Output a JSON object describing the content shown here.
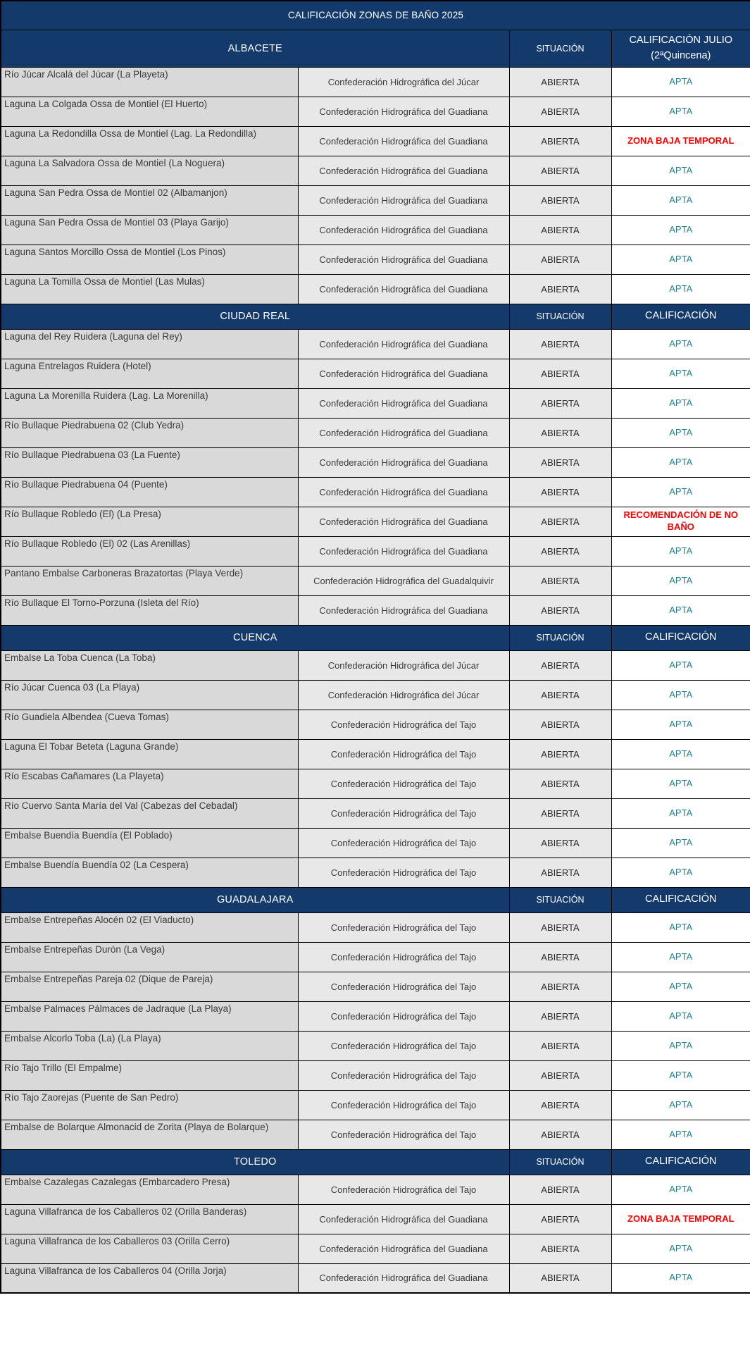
{
  "title": "CALIFICACIÓN ZONAS DE BAÑO 2025",
  "colors": {
    "header_navy": "#143A6B",
    "apta_teal": "#21808D",
    "alert_red": "#FF0000",
    "zone_col_bg": "#D9D9D9",
    "mid_col_bg": "#E8E8E8",
    "border": "#000000"
  },
  "sections": [
    {
      "province": "ALBACETE",
      "situacion_header": "SITUACIÓN",
      "calificacion_header_lines": [
        "CALIFICACIÓN JULIO",
        "(2ªQuincena)"
      ],
      "rows": [
        {
          "zone": "Río Júcar Alcalá del Júcar (La Playeta)",
          "authority": "Confederación Hidrográfica del Júcar",
          "situation": "ABIERTA",
          "rating": "APTA",
          "alert": false
        },
        {
          "zone": "Laguna La Colgada Ossa de Montiel (El Huerto)",
          "authority": "Confederación Hidrográfica del Guadiana",
          "situation": "ABIERTA",
          "rating": "APTA",
          "alert": false
        },
        {
          "zone": "Laguna La Redondilla Ossa de Montiel (Lag. La Redondilla)",
          "authority": "Confederación Hidrográfica del Guadiana",
          "situation": "ABIERTA",
          "rating": "ZONA BAJA TEMPORAL",
          "alert": true
        },
        {
          "zone": "Laguna La Salvadora Ossa de Montiel (La Noguera)",
          "authority": "Confederación Hidrográfica del Guadiana",
          "situation": "ABIERTA",
          "rating": "APTA",
          "alert": false
        },
        {
          "zone": "Laguna San Pedra Ossa de Montiel 02 (Albamanjon)",
          "authority": "Confederación Hidrográfica del Guadiana",
          "situation": "ABIERTA",
          "rating": "APTA",
          "alert": false
        },
        {
          "zone": "Laguna San Pedra Ossa de Montiel 03 (Playa Garijo)",
          "authority": "Confederación Hidrográfica del Guadiana",
          "situation": "ABIERTA",
          "rating": "APTA",
          "alert": false
        },
        {
          "zone": "Laguna Santos Morcillo Ossa de Montiel (Los Pinos)",
          "authority": "Confederación Hidrográfica del Guadiana",
          "situation": "ABIERTA",
          "rating": "APTA",
          "alert": false
        },
        {
          "zone": "Laguna La Tomilla Ossa de Montiel (Las Mulas)",
          "authority": "Confederación Hidrográfica del Guadiana",
          "situation": "ABIERTA",
          "rating": "APTA",
          "alert": false
        }
      ]
    },
    {
      "province": "CIUDAD REAL",
      "situacion_header": "SITUACIÓN",
      "calificacion_header_lines": [
        "CALIFICACIÓN"
      ],
      "rows": [
        {
          "zone": "Laguna del Rey Ruidera (Laguna del Rey)",
          "authority": "Confederación Hidrográfica del Guadiana",
          "situation": "ABIERTA",
          "rating": "APTA",
          "alert": false
        },
        {
          "zone": "Laguna Entrelagos Ruidera (Hotel)",
          "authority": "Confederación Hidrográfica del Guadiana",
          "situation": "ABIERTA",
          "rating": "APTA",
          "alert": false
        },
        {
          "zone": "Laguna La Morenilla Ruidera (Lag. La Morenilla)",
          "authority": "Confederación Hidrográfica del Guadiana",
          "situation": "ABIERTA",
          "rating": "APTA",
          "alert": false
        },
        {
          "zone": "Río Bullaque Piedrabuena 02 (Club Yedra)",
          "authority": "Confederación Hidrográfica del Guadiana",
          "situation": "ABIERTA",
          "rating": "APTA",
          "alert": false
        },
        {
          "zone": "Río Bullaque Piedrabuena 03 (La Fuente)",
          "authority": "Confederación Hidrográfica del Guadiana",
          "situation": "ABIERTA",
          "rating": "APTA",
          "alert": false
        },
        {
          "zone": "Río Bullaque Piedrabuena 04 (Puente)",
          "authority": "Confederación Hidrográfica del Guadiana",
          "situation": "ABIERTA",
          "rating": "APTA",
          "alert": false
        },
        {
          "zone": "Río Bullaque Robledo (El) (La Presa)",
          "authority": "Confederación Hidrográfica del Guadiana",
          "situation": "ABIERTA",
          "rating": "RECOMENDACIÓN DE NO BAÑO",
          "alert": true
        },
        {
          "zone": "Río Bullaque Robledo (El) 02 (Las Arenillas)",
          "authority": "Confederación Hidrográfica del Guadiana",
          "situation": "ABIERTA",
          "rating": "APTA",
          "alert": false
        },
        {
          "zone": "Pantano Embalse Carboneras Brazatortas (Playa Verde)",
          "authority": "Confederación Hidrográfica del Guadalquivir",
          "situation": "ABIERTA",
          "rating": "APTA",
          "alert": false
        },
        {
          "zone": "Río Bullaque El Torno-Porzuna (Isleta del Río)",
          "authority": "Confederación Hidrográfica del Guadiana",
          "situation": "ABIERTA",
          "rating": "APTA",
          "alert": false
        }
      ]
    },
    {
      "province": "CUENCA",
      "situacion_header": "SITUACIÓN",
      "calificacion_header_lines": [
        "CALIFICACIÓN"
      ],
      "rows": [
        {
          "zone": "Embalse La Toba Cuenca (La Toba)",
          "authority": "Confederación Hidrográfica del Júcar",
          "situation": "ABIERTA",
          "rating": "APTA",
          "alert": false
        },
        {
          "zone": "Río Júcar Cuenca 03 (La Playa)",
          "authority": "Confederación Hidrográfica del Júcar",
          "situation": "ABIERTA",
          "rating": "APTA",
          "alert": false
        },
        {
          "zone": "Río Guadiela Albendea (Cueva Tomas)",
          "authority": "Confederación Hidrográfica del Tajo",
          "situation": "ABIERTA",
          "rating": "APTA",
          "alert": false
        },
        {
          "zone": "Laguna El Tobar Beteta (Laguna Grande)",
          "authority": "Confederación Hidrográfica del Tajo",
          "situation": "ABIERTA",
          "rating": "APTA",
          "alert": false
        },
        {
          "zone": "Río Escabas Cañamares (La Playeta)",
          "authority": "Confederación Hidrográfica del Tajo",
          "situation": "ABIERTA",
          "rating": "APTA",
          "alert": false
        },
        {
          "zone": "Río Cuervo Santa María del Val (Cabezas del Cebadal)",
          "authority": "Confederación Hidrográfica del Tajo",
          "situation": "ABIERTA",
          "rating": "APTA",
          "alert": false
        },
        {
          "zone": "Embalse Buendía Buendía (El Poblado)",
          "authority": "Confederación Hidrográfica del Tajo",
          "situation": "ABIERTA",
          "rating": "APTA",
          "alert": false
        },
        {
          "zone": "Embalse Buendía Buendía 02 (La Cespera)",
          "authority": "Confederación Hidrográfica del Tajo",
          "situation": "ABIERTA",
          "rating": "APTA",
          "alert": false
        }
      ]
    },
    {
      "province": "GUADALAJARA",
      "situacion_header": "SITUACIÓN",
      "calificacion_header_lines": [
        "CALIFICACIÓN"
      ],
      "rows": [
        {
          "zone": "Embalse Entrepeñas Alocén 02 (El Viaducto)",
          "authority": "Confederación Hidrográfica del Tajo",
          "situation": "ABIERTA",
          "rating": "APTA",
          "alert": false
        },
        {
          "zone": "Embalse Entrepeñas Durón (La Vega)",
          "authority": "Confederación Hidrográfica del Tajo",
          "situation": "ABIERTA",
          "rating": "APTA",
          "alert": false
        },
        {
          "zone": "Embalse Entrepeñas Pareja 02 (Dique de Pareja)",
          "authority": "Confederación Hidrográfica del Tajo",
          "situation": "ABIERTA",
          "rating": "APTA",
          "alert": false
        },
        {
          "zone": "Embalse Palmaces Pálmaces de Jadraque (La Playa)",
          "authority": "Confederación Hidrográfica del Tajo",
          "situation": "ABIERTA",
          "rating": "APTA",
          "alert": false
        },
        {
          "zone": "Embalse Alcorlo Toba (La) (La Playa)",
          "authority": "Confederación Hidrográfica del Tajo",
          "situation": "ABIERTA",
          "rating": "APTA",
          "alert": false
        },
        {
          "zone": "Río Tajo Trillo (El Empalme)",
          "authority": "Confederación Hidrográfica del Tajo",
          "situation": "ABIERTA",
          "rating": "APTA",
          "alert": false
        },
        {
          "zone": "Río Tajo Zaorejas (Puente de San Pedro)",
          "authority": "Confederación Hidrográfica del Tajo",
          "situation": "ABIERTA",
          "rating": "APTA",
          "alert": false
        },
        {
          "zone": "Embalse de Bolarque Almonacid de Zorita (Playa de Bolarque)",
          "authority": "Confederación Hidrográfica del Tajo",
          "situation": "ABIERTA",
          "rating": "APTA",
          "alert": false
        }
      ]
    },
    {
      "province": "TOLEDO",
      "situacion_header": "SITUACIÓN",
      "calificacion_header_lines": [
        "CALIFICACIÓN"
      ],
      "rows": [
        {
          "zone": "Embalse Cazalegas Cazalegas (Embarcadero Presa)",
          "authority": "Confederación Hidrográfica del Tajo",
          "situation": "ABIERTA",
          "rating": "APTA",
          "alert": false
        },
        {
          "zone": "Laguna Villafranca de los Caballeros 02 (Orilla Banderas)",
          "authority": "Confederación Hidrográfica del Guadiana",
          "situation": "ABIERTA",
          "rating": "ZONA BAJA TEMPORAL",
          "alert": true
        },
        {
          "zone": "Laguna Villafranca de los Caballeros 03 (Orilla Cerro)",
          "authority": "Confederación Hidrográfica del Guadiana",
          "situation": "ABIERTA",
          "rating": "APTA",
          "alert": false
        },
        {
          "zone": "Laguna Villafranca de los Caballeros 04 (Orilla Jorja)",
          "authority": "Confederación Hidrográfica del Guadiana",
          "situation": "ABIERTA",
          "rating": "APTA",
          "alert": false
        }
      ]
    }
  ]
}
